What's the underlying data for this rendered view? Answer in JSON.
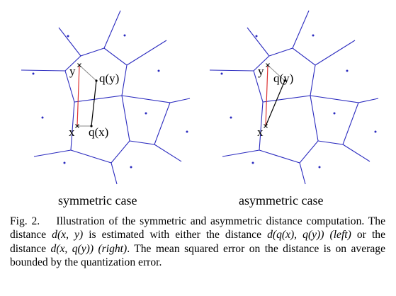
{
  "panels": [
    {
      "caption": "symmetric case",
      "labels": {
        "y": "y",
        "qy": "q(y)",
        "x": "x",
        "qx": "q(x)"
      }
    },
    {
      "caption": "asymmetric case",
      "labels": {
        "y": "y",
        "qy": "q(y)",
        "x": "x"
      }
    }
  ],
  "caption": {
    "fig_label": "Fig. 2.",
    "text_1": "Illustration of the symmetric and asymmetric distance computation. The distance ",
    "m_dxy": "d(x, y)",
    "text_2": " is estimated with either the distance ",
    "m_dqxqy": "d(q(x), q(y))",
    "left": "(left)",
    "text_3": " or the distance ",
    "m_dxqy": "d(x, q(y))",
    "right": "(right)",
    "text_4": ". The mean squared error on the distance is on average bounded by the quantization error."
  },
  "colors": {
    "cells": "#2b2bbf",
    "true_distance": "#dd3333",
    "approx_distance": "#000000",
    "query_links": "#888888"
  }
}
